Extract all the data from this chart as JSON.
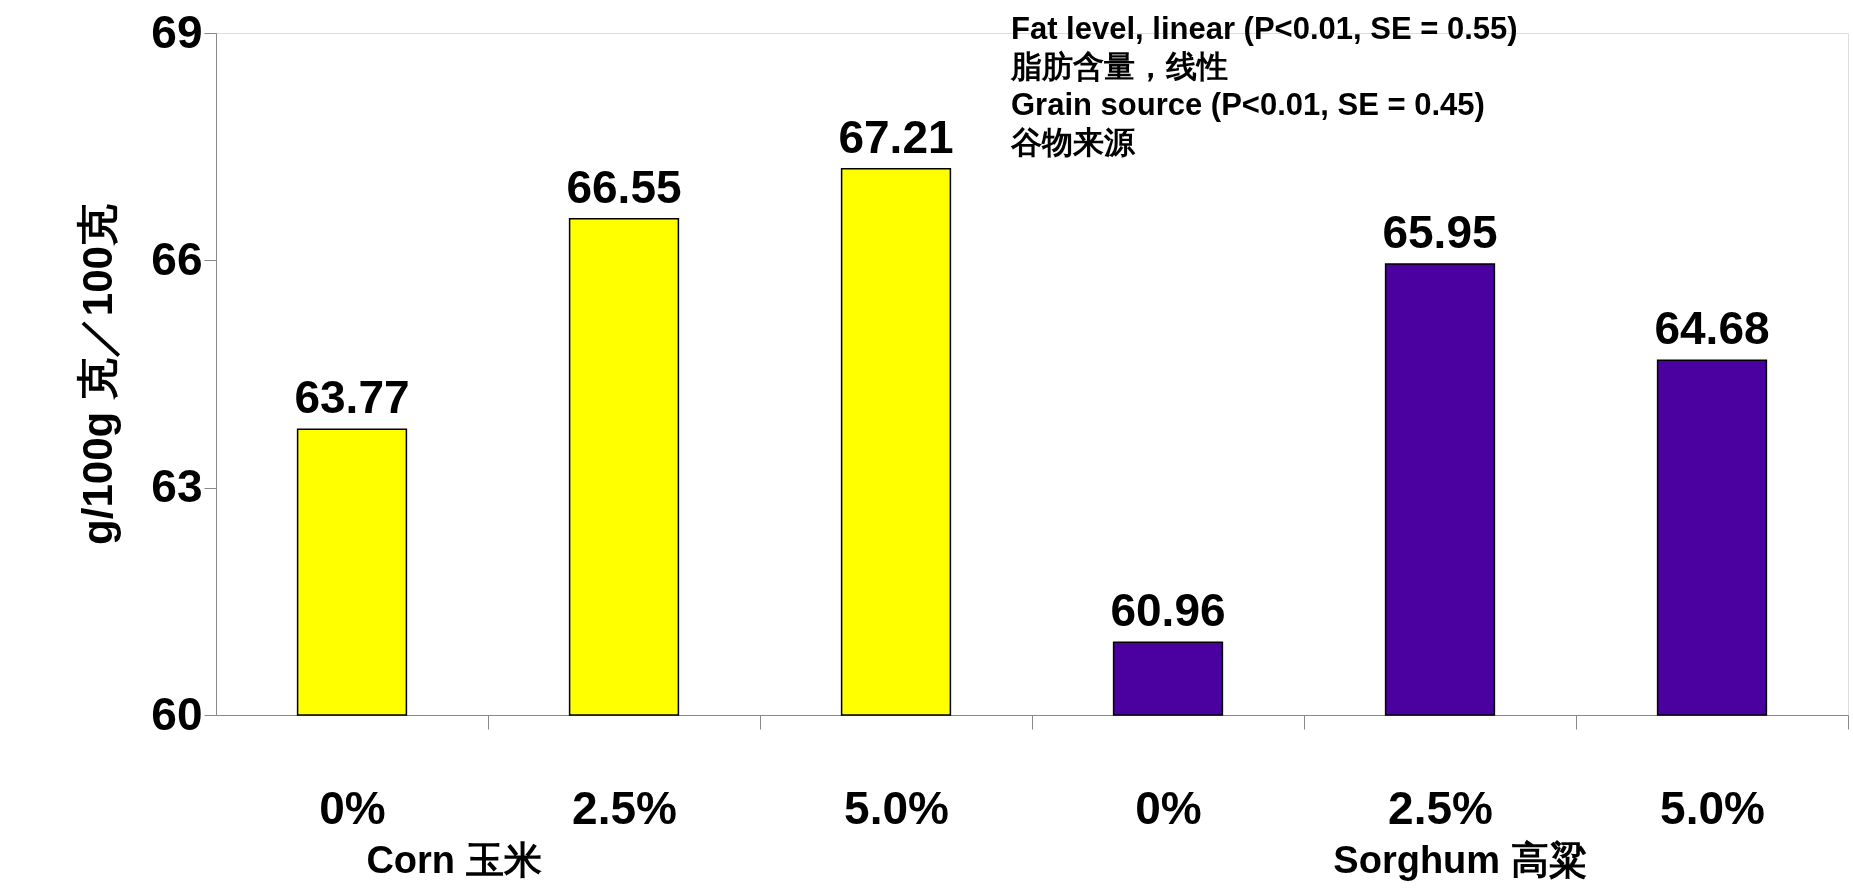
{
  "chart_data": {
    "type": "bar",
    "categories": [
      "0%",
      "2.5%",
      "5.0%",
      "0%",
      "2.5%",
      "5.0%"
    ],
    "values": [
      63.77,
      66.55,
      67.21,
      60.96,
      65.95,
      64.68
    ],
    "colors": [
      "#ffff00",
      "#ffff00",
      "#ffff00",
      "#4b00a0",
      "#4b00a0",
      "#4b00a0"
    ],
    "ylabel": "g/100g   克／100克",
    "ylim": [
      60,
      69
    ],
    "yticks": [
      60,
      63,
      66,
      69
    ],
    "data_labels": true,
    "grid": false,
    "annotations": [
      "Fat level, linear (P<0.01, SE = 0.55)",
      "脂肪含量，线性",
      "Grain source   (P<0.01, SE = 0.45)",
      "谷物来源",
      "Corn 玉米",
      "Sorghum 高粱"
    ]
  }
}
